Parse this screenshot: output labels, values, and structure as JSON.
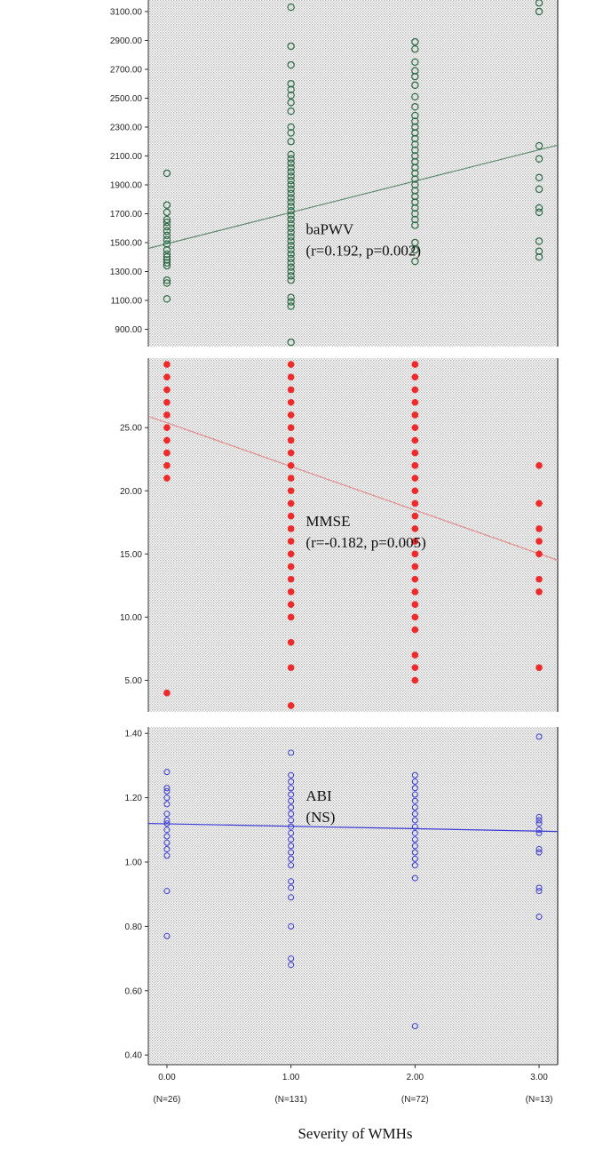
{
  "figure": {
    "xlabel": "Severity of WMHs"
  },
  "chart_data": [
    {
      "type": "scatter",
      "name": "bapwv-panel",
      "title": "",
      "xlabel": "",
      "ylabel": "",
      "xlim": [
        -0.15,
        3.15
      ],
      "ylim": [
        780,
        3180
      ],
      "yticks": [
        900,
        1100,
        1300,
        1500,
        1700,
        1900,
        2100,
        2300,
        2500,
        2700,
        2900,
        3100
      ],
      "ytick_labels": [
        "900.00",
        "1100.00",
        "1300.00",
        "1500.00",
        "1700.00",
        "1900.00",
        "2100.00",
        "2300.00",
        "2500.00",
        "2700.00",
        "2900.00",
        "3100.00"
      ],
      "annotation": [
        "baPWV",
        "(r=0.192, p=0.002)"
      ],
      "annotation_at": [
        1.12,
        1560
      ],
      "marker": "open-circle",
      "color": "#2e6b46",
      "line_color": "#5c8a6b",
      "fit_line": [
        [
          -0.15,
          1460
        ],
        [
          3.15,
          2175
        ]
      ],
      "points": [
        [
          0,
          1980
        ],
        [
          0,
          1760
        ],
        [
          0,
          1710
        ],
        [
          0,
          1660
        ],
        [
          0,
          1640
        ],
        [
          0,
          1610
        ],
        [
          0,
          1580
        ],
        [
          0,
          1550
        ],
        [
          0,
          1520
        ],
        [
          0,
          1490
        ],
        [
          0,
          1450
        ],
        [
          0,
          1420
        ],
        [
          0,
          1400
        ],
        [
          0,
          1380
        ],
        [
          0,
          1360
        ],
        [
          0,
          1340
        ],
        [
          0,
          1240
        ],
        [
          0,
          1220
        ],
        [
          0,
          1110
        ],
        [
          1,
          3130
        ],
        [
          1,
          2860
        ],
        [
          1,
          2730
        ],
        [
          1,
          2600
        ],
        [
          1,
          2560
        ],
        [
          1,
          2520
        ],
        [
          1,
          2470
        ],
        [
          1,
          2410
        ],
        [
          1,
          2300
        ],
        [
          1,
          2260
        ],
        [
          1,
          2200
        ],
        [
          1,
          2110
        ],
        [
          1,
          2080
        ],
        [
          1,
          2050
        ],
        [
          1,
          2020
        ],
        [
          1,
          1990
        ],
        [
          1,
          1960
        ],
        [
          1,
          1930
        ],
        [
          1,
          1900
        ],
        [
          1,
          1870
        ],
        [
          1,
          1840
        ],
        [
          1,
          1810
        ],
        [
          1,
          1780
        ],
        [
          1,
          1750
        ],
        [
          1,
          1720
        ],
        [
          1,
          1690
        ],
        [
          1,
          1660
        ],
        [
          1,
          1630
        ],
        [
          1,
          1600
        ],
        [
          1,
          1570
        ],
        [
          1,
          1540
        ],
        [
          1,
          1510
        ],
        [
          1,
          1480
        ],
        [
          1,
          1450
        ],
        [
          1,
          1420
        ],
        [
          1,
          1390
        ],
        [
          1,
          1360
        ],
        [
          1,
          1330
        ],
        [
          1,
          1300
        ],
        [
          1,
          1270
        ],
        [
          1,
          1240
        ],
        [
          1,
          1120
        ],
        [
          1,
          1090
        ],
        [
          1,
          1060
        ],
        [
          1,
          810
        ],
        [
          2,
          2890
        ],
        [
          2,
          2840
        ],
        [
          2,
          2750
        ],
        [
          2,
          2690
        ],
        [
          2,
          2650
        ],
        [
          2,
          2590
        ],
        [
          2,
          2510
        ],
        [
          2,
          2440
        ],
        [
          2,
          2380
        ],
        [
          2,
          2340
        ],
        [
          2,
          2300
        ],
        [
          2,
          2260
        ],
        [
          2,
          2220
        ],
        [
          2,
          2180
        ],
        [
          2,
          2140
        ],
        [
          2,
          2100
        ],
        [
          2,
          2060
        ],
        [
          2,
          2020
        ],
        [
          2,
          1980
        ],
        [
          2,
          1940
        ],
        [
          2,
          1900
        ],
        [
          2,
          1860
        ],
        [
          2,
          1820
        ],
        [
          2,
          1780
        ],
        [
          2,
          1740
        ],
        [
          2,
          1700
        ],
        [
          2,
          1660
        ],
        [
          2,
          1620
        ],
        [
          2,
          1500
        ],
        [
          2,
          1450
        ],
        [
          2,
          1370
        ],
        [
          3,
          3160
        ],
        [
          3,
          3100
        ],
        [
          3,
          2170
        ],
        [
          3,
          2080
        ],
        [
          3,
          1950
        ],
        [
          3,
          1870
        ],
        [
          3,
          1740
        ],
        [
          3,
          1710
        ],
        [
          3,
          1510
        ],
        [
          3,
          1440
        ],
        [
          3,
          1400
        ]
      ]
    },
    {
      "type": "scatter",
      "name": "mmse-panel",
      "title": "",
      "xlabel": "",
      "ylabel": "",
      "xlim": [
        -0.15,
        3.15
      ],
      "ylim": [
        2.5,
        30.5
      ],
      "yticks": [
        5,
        10,
        15,
        20,
        25
      ],
      "ytick_labels": [
        "5.00",
        "10.00",
        "15.00",
        "20.00",
        "25.00"
      ],
      "annotation": [
        "MMSE",
        "(r=-0.182, p=0.005)"
      ],
      "annotation_at": [
        1.12,
        17.2
      ],
      "marker": "filled-circle",
      "color": "#ee2a2a",
      "line_color": "#e58a8a",
      "fit_line": [
        [
          -0.15,
          25.9
        ],
        [
          3.15,
          14.5
        ]
      ],
      "points": [
        [
          0,
          30
        ],
        [
          0,
          29
        ],
        [
          0,
          28
        ],
        [
          0,
          27
        ],
        [
          0,
          26
        ],
        [
          0,
          25
        ],
        [
          0,
          24
        ],
        [
          0,
          23
        ],
        [
          0,
          22
        ],
        [
          0,
          21
        ],
        [
          0,
          4
        ],
        [
          1,
          30
        ],
        [
          1,
          29
        ],
        [
          1,
          28
        ],
        [
          1,
          27
        ],
        [
          1,
          26
        ],
        [
          1,
          25
        ],
        [
          1,
          24
        ],
        [
          1,
          23
        ],
        [
          1,
          22
        ],
        [
          1,
          21
        ],
        [
          1,
          20
        ],
        [
          1,
          19
        ],
        [
          1,
          18
        ],
        [
          1,
          17
        ],
        [
          1,
          16
        ],
        [
          1,
          15
        ],
        [
          1,
          14
        ],
        [
          1,
          13
        ],
        [
          1,
          12
        ],
        [
          1,
          11
        ],
        [
          1,
          10
        ],
        [
          1,
          8
        ],
        [
          1,
          6
        ],
        [
          1,
          3
        ],
        [
          2,
          30
        ],
        [
          2,
          29
        ],
        [
          2,
          28
        ],
        [
          2,
          27
        ],
        [
          2,
          26
        ],
        [
          2,
          25
        ],
        [
          2,
          24
        ],
        [
          2,
          23
        ],
        [
          2,
          22
        ],
        [
          2,
          21
        ],
        [
          2,
          20
        ],
        [
          2,
          19
        ],
        [
          2,
          18
        ],
        [
          2,
          17
        ],
        [
          2,
          16
        ],
        [
          2,
          15
        ],
        [
          2,
          14
        ],
        [
          2,
          13
        ],
        [
          2,
          12
        ],
        [
          2,
          11
        ],
        [
          2,
          10
        ],
        [
          2,
          9
        ],
        [
          2,
          7
        ],
        [
          2,
          6
        ],
        [
          2,
          5
        ],
        [
          3,
          22
        ],
        [
          3,
          19
        ],
        [
          3,
          17
        ],
        [
          3,
          16
        ],
        [
          3,
          15
        ],
        [
          3,
          13
        ],
        [
          3,
          12
        ],
        [
          3,
          6
        ]
      ]
    },
    {
      "type": "scatter",
      "name": "abi-panel",
      "title": "",
      "xlabel": "",
      "ylabel": "",
      "xlim": [
        -0.15,
        3.15
      ],
      "ylim": [
        0.37,
        1.42
      ],
      "yticks": [
        0.4,
        0.6,
        0.8,
        1.0,
        1.2,
        1.4
      ],
      "ytick_labels": [
        "0.40",
        "0.60",
        "0.80",
        "1.00",
        "1.20",
        "1.40"
      ],
      "xticks": [
        0,
        1,
        2,
        3
      ],
      "xtick_labels": [
        "0.00",
        "1.00",
        "2.00",
        "3.00"
      ],
      "group_labels": [
        "(N=26)",
        "(N=131)",
        "(N=72)",
        "(N=13)"
      ],
      "annotation": [
        "ABI",
        "(NS)"
      ],
      "annotation_at": [
        1.12,
        1.19
      ],
      "marker": "open-circle",
      "color": "#3a3ad6",
      "line_color": "#3a3ad6",
      "fit_line": [
        [
          -0.15,
          1.12
        ],
        [
          3.15,
          1.095
        ]
      ],
      "points": [
        [
          0,
          1.28
        ],
        [
          0,
          1.23
        ],
        [
          0,
          1.22
        ],
        [
          0,
          1.2
        ],
        [
          0,
          1.18
        ],
        [
          0,
          1.15
        ],
        [
          0,
          1.13
        ],
        [
          0,
          1.12
        ],
        [
          0,
          1.1
        ],
        [
          0,
          1.08
        ],
        [
          0,
          1.06
        ],
        [
          0,
          1.04
        ],
        [
          0,
          1.02
        ],
        [
          0,
          0.91
        ],
        [
          0,
          0.77
        ],
        [
          1,
          1.34
        ],
        [
          1,
          1.27
        ],
        [
          1,
          1.25
        ],
        [
          1,
          1.23
        ],
        [
          1,
          1.21
        ],
        [
          1,
          1.19
        ],
        [
          1,
          1.17
        ],
        [
          1,
          1.15
        ],
        [
          1,
          1.13
        ],
        [
          1,
          1.11
        ],
        [
          1,
          1.09
        ],
        [
          1,
          1.07
        ],
        [
          1,
          1.05
        ],
        [
          1,
          1.03
        ],
        [
          1,
          1.01
        ],
        [
          1,
          0.99
        ],
        [
          1,
          0.94
        ],
        [
          1,
          0.92
        ],
        [
          1,
          0.89
        ],
        [
          1,
          0.8
        ],
        [
          1,
          0.7
        ],
        [
          1,
          0.68
        ],
        [
          2,
          1.27
        ],
        [
          2,
          1.25
        ],
        [
          2,
          1.23
        ],
        [
          2,
          1.21
        ],
        [
          2,
          1.19
        ],
        [
          2,
          1.17
        ],
        [
          2,
          1.15
        ],
        [
          2,
          1.13
        ],
        [
          2,
          1.11
        ],
        [
          2,
          1.09
        ],
        [
          2,
          1.07
        ],
        [
          2,
          1.05
        ],
        [
          2,
          1.03
        ],
        [
          2,
          1.01
        ],
        [
          2,
          0.99
        ],
        [
          2,
          0.95
        ],
        [
          2,
          0.49
        ],
        [
          3,
          1.39
        ],
        [
          3,
          1.14
        ],
        [
          3,
          1.13
        ],
        [
          3,
          1.12
        ],
        [
          3,
          1.1
        ],
        [
          3,
          1.09
        ],
        [
          3,
          1.04
        ],
        [
          3,
          1.03
        ],
        [
          3,
          0.92
        ],
        [
          3,
          0.91
        ],
        [
          3,
          0.83
        ]
      ]
    }
  ]
}
